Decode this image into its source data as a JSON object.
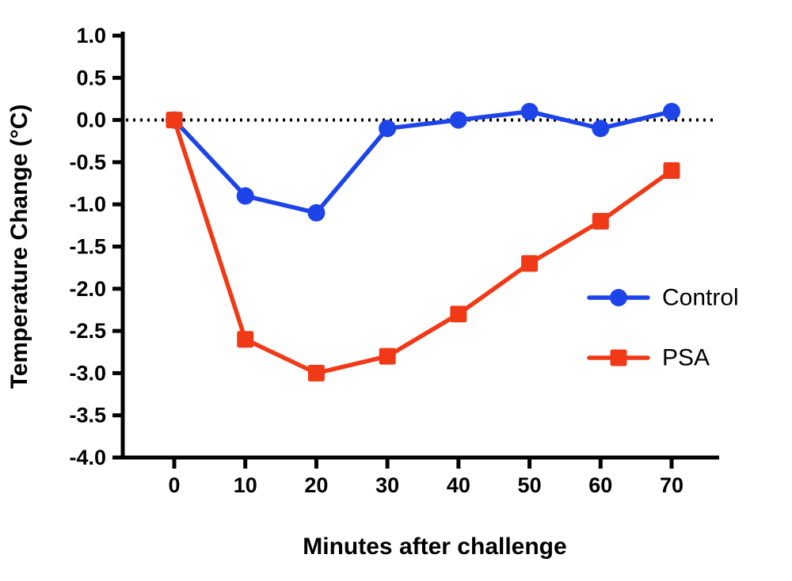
{
  "chart_data": {
    "type": "line",
    "title": "",
    "xlabel": "Minutes after challenge",
    "ylabel": "Temperature Change (°C)",
    "x": [
      0,
      10,
      20,
      30,
      40,
      50,
      60,
      70
    ],
    "xticks": [
      0,
      10,
      20,
      30,
      40,
      50,
      60,
      70
    ],
    "ylim": [
      -4.0,
      1.0
    ],
    "ytick_step": 0.5,
    "grid": false,
    "zero_baseline": {
      "value": 0.0,
      "style": "dotted",
      "color": "#000000"
    },
    "legend": {
      "position": "right-middle",
      "entries": [
        {
          "label": "Control",
          "marker": "circle",
          "color": "#1c44e8"
        },
        {
          "label": "PSA",
          "marker": "square",
          "color": "#f03a17"
        }
      ]
    },
    "series": [
      {
        "name": "Control",
        "color": "#1c44e8",
        "marker": "circle",
        "values": [
          0.0,
          -0.9,
          -1.1,
          -0.1,
          0.0,
          0.1,
          -0.1,
          0.1
        ]
      },
      {
        "name": "PSA",
        "color": "#f03a17",
        "marker": "square",
        "values": [
          0.0,
          -2.6,
          -3.0,
          -2.8,
          -2.3,
          -1.7,
          -1.2,
          -0.6
        ]
      }
    ]
  }
}
